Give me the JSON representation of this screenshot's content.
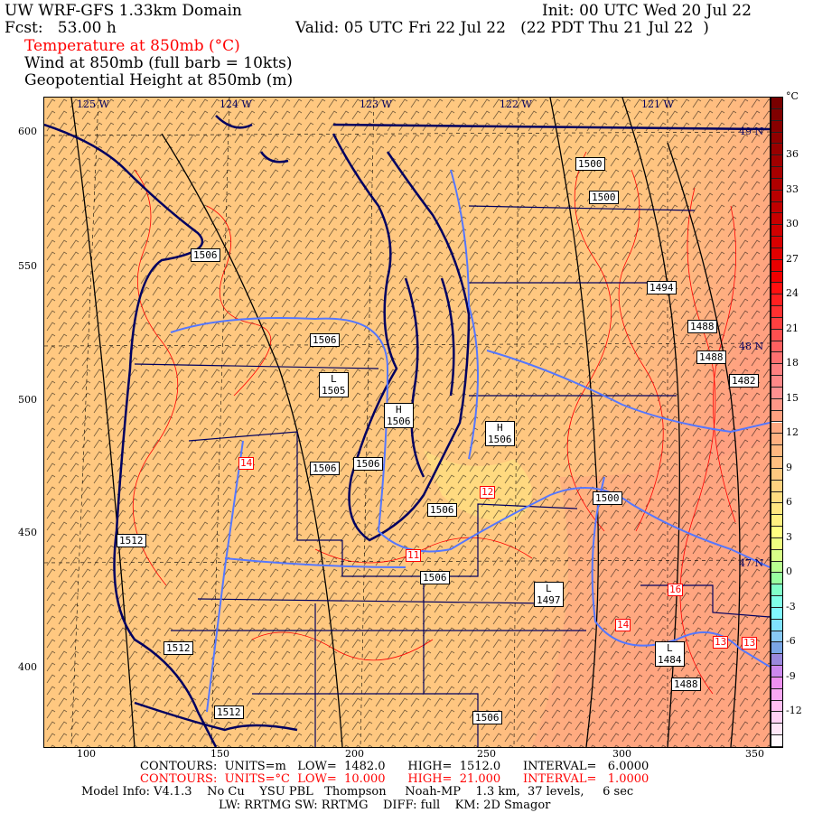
{
  "header": {
    "title": "UW WRF-GFS 1.33km Domain",
    "init": "Init: 00 UTC Wed 20 Jul 22",
    "fcst": "Fcst:   53.00 h",
    "valid": "Valid: 05 UTC Fri 22 Jul 22   (22 PDT Thu 21 Jul 22  )",
    "field_temp": "Temperature at 850mb (°C)",
    "field_wind": "Wind at 850mb (full barb = 10kts)",
    "field_height": "Geopotential Height at 850mb (m)"
  },
  "axes": {
    "top_lon": [
      "125 W",
      "124 W",
      "123 W",
      "122 W",
      "121 W"
    ],
    "right_lat": [
      "49 N",
      "48 N",
      "47 N"
    ],
    "left": [
      "600",
      "550",
      "500",
      "450",
      "400"
    ],
    "bottom": [
      "100",
      "150",
      "200",
      "250",
      "300",
      "350"
    ]
  },
  "colorbar": {
    "unit": "°C",
    "labels": [
      "36",
      "33",
      "30",
      "27",
      "24",
      "21",
      "18",
      "15",
      "12",
      "9",
      "6",
      "3",
      "0",
      "-3",
      "-6",
      "-9",
      "-12"
    ],
    "range": [
      -15,
      41
    ],
    "colors": [
      "#fff8fc",
      "#ffe6f8",
      "#ffd2f5",
      "#ffc0f2",
      "#f8a8f2",
      "#ee90f0",
      "#cc88ee",
      "#9a88dd",
      "#7aa6e6",
      "#88c8f4",
      "#80e2ff",
      "#80f8ff",
      "#80ffe8",
      "#80ffc8",
      "#98ffa0",
      "#b8ff90",
      "#d8ff88",
      "#eeff80",
      "#ffff80",
      "#fff080",
      "#ffe680",
      "#ffdc80",
      "#ffd280",
      "#ffc880",
      "#ffc080",
      "#ffb880",
      "#ffb080",
      "#ffa880",
      "#ffa080",
      "#ff9888",
      "#ff9090",
      "#ff8888",
      "#ff8080",
      "#ff7070",
      "#ff6060",
      "#ff5050",
      "#ff4040",
      "#ff3030",
      "#ff2020",
      "#ff1010",
      "#f00000",
      "#e80000",
      "#e00000",
      "#d80000",
      "#d00000",
      "#c80000",
      "#c00000",
      "#b80000",
      "#b00000",
      "#a80000",
      "#a00000",
      "#980000",
      "#900000",
      "#880000",
      "#800000",
      "#780000"
    ]
  },
  "height_labels": [
    {
      "text": "1500"
    },
    {
      "text": "1500"
    },
    {
      "text": "1506"
    },
    {
      "text": "1494"
    },
    {
      "text": "1488"
    },
    {
      "text": "1488"
    },
    {
      "text": "1482"
    },
    {
      "text": "1506"
    },
    {
      "text": "L\n1505"
    },
    {
      "text": "H\n1506"
    },
    {
      "text": "H\n1506"
    },
    {
      "text": "1506"
    },
    {
      "text": "1506"
    },
    {
      "text": "1506"
    },
    {
      "text": "1500"
    },
    {
      "text": "1512"
    },
    {
      "text": "1506"
    },
    {
      "text": "L\n1497"
    },
    {
      "text": "1512"
    },
    {
      "text": "L\n1484"
    },
    {
      "text": "1488"
    },
    {
      "text": "1512"
    },
    {
      "text": "1506"
    }
  ],
  "temp_labels": [
    "14",
    "12",
    "11",
    "16",
    "14",
    "13",
    "13"
  ],
  "footer": {
    "height_contours": "CONTOURS:  UNITS=m   LOW=  1482.0      HIGH=  1512.0      INTERVAL=   6.0000",
    "temp_contours": "CONTOURS:  UNITS=°C  LOW=  10.000      HIGH=  21.000      INTERVAL=   1.0000",
    "model_info": "Model Info: V4.1.3    No Cu    YSU PBL   Thompson     Noah-MP    1.3 km,  37 levels,     6 sec",
    "model_info2": "LW: RRTMG SW: RRTMG    DIFF: full    KM: 2D Smagor"
  },
  "colors": {
    "land": "#ffc880",
    "warm": "#ffa880",
    "coast": "#000060",
    "river": "#5577ff",
    "temp_contour": "#ff0000"
  }
}
